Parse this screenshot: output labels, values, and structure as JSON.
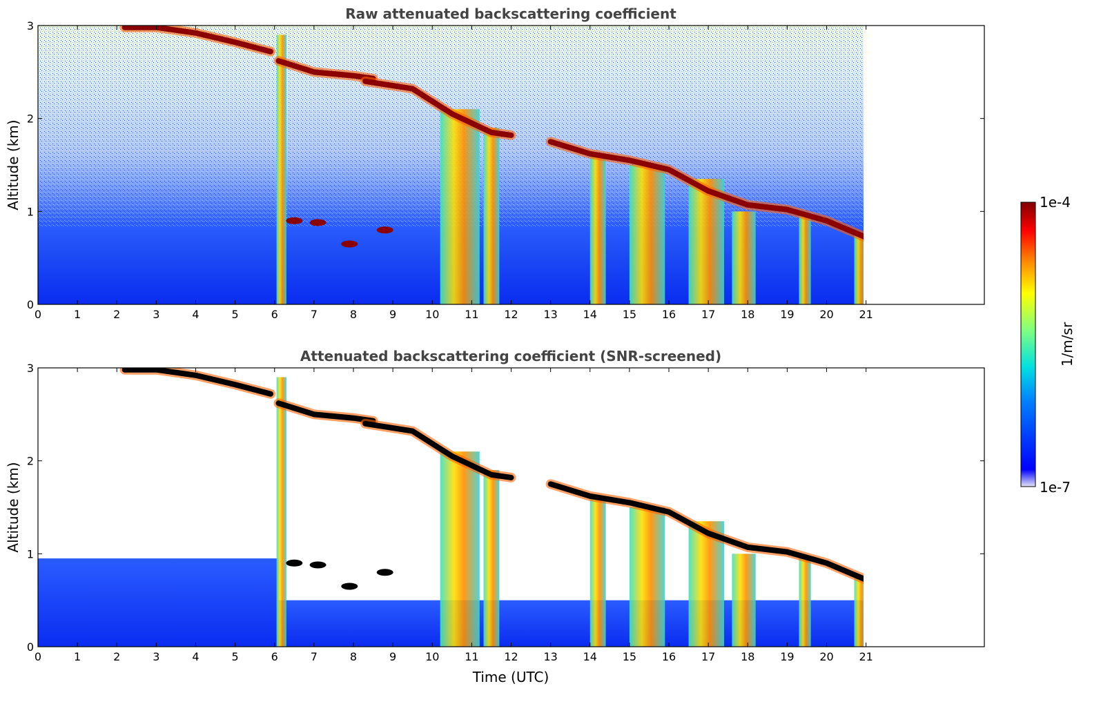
{
  "chart_data": [
    {
      "type": "heatmap",
      "title": "Raw attenuated backscattering coefficient",
      "xlabel": "",
      "ylabel": "Altitude (km)",
      "xlim": [
        0,
        24
      ],
      "ylim": [
        0,
        3
      ],
      "x_ticks": [
        0,
        1,
        2,
        3,
        4,
        5,
        6,
        7,
        8,
        9,
        10,
        11,
        12,
        13,
        14,
        15,
        16,
        17,
        18,
        19,
        20,
        21
      ],
      "y_ticks": [
        0,
        1,
        2,
        3
      ],
      "data_extent_x": [
        0,
        21
      ],
      "grid": false,
      "noise_above_signal": true,
      "cloud_layer": {
        "description_values": "cloud base altitude (km) vs time (UTC)",
        "segments": [
          {
            "time": [
              2.2,
              3.0,
              4.0,
              5.0,
              5.9
            ],
            "altitude": [
              2.98,
              2.98,
              2.92,
              2.82,
              2.72
            ]
          },
          {
            "time": [
              6.1,
              7.0,
              8.0,
              8.5
            ],
            "altitude": [
              2.62,
              2.5,
              2.46,
              2.43
            ]
          },
          {
            "time": [
              8.3,
              9.5,
              10.5,
              11.5,
              12.0
            ],
            "altitude": [
              2.4,
              2.32,
              2.05,
              1.85,
              1.82
            ]
          },
          {
            "time": [
              13.0,
              14.0,
              15.0,
              16.0,
              17.0,
              18.0,
              19.0,
              20.0,
              21.0
            ],
            "altitude": [
              1.75,
              1.62,
              1.55,
              1.45,
              1.22,
              1.07,
              1.02,
              0.9,
              0.72
            ]
          }
        ],
        "low_clouds": {
          "time": [
            6.5,
            7.1,
            7.9,
            8.8
          ],
          "altitude": [
            0.9,
            0.88,
            0.65,
            0.8
          ]
        }
      },
      "rain_shafts": [
        {
          "time": [
            6.05,
            6.3
          ],
          "top": 2.9
        },
        {
          "time": [
            10.2,
            11.2
          ],
          "top": 2.1
        },
        {
          "time": [
            11.3,
            11.7
          ],
          "top": 1.9
        },
        {
          "time": [
            14.0,
            14.4
          ],
          "top": 1.6
        },
        {
          "time": [
            15.0,
            15.9
          ],
          "top": 1.5
        },
        {
          "time": [
            16.5,
            17.4
          ],
          "top": 1.35
        },
        {
          "time": [
            17.6,
            18.2
          ],
          "top": 1.0
        },
        {
          "time": [
            19.3,
            19.6
          ],
          "top": 0.95
        },
        {
          "time": [
            20.7,
            21.0
          ],
          "top": 0.75
        }
      ]
    },
    {
      "type": "heatmap",
      "title": "Attenuated backscattering coefficient (SNR-screened)",
      "xlabel": "Time (UTC)",
      "ylabel": "Altitude (km)",
      "xlim": [
        0,
        24
      ],
      "ylim": [
        0,
        3
      ],
      "x_ticks": [
        0,
        1,
        2,
        3,
        4,
        5,
        6,
        7,
        8,
        9,
        10,
        11,
        12,
        13,
        14,
        15,
        16,
        17,
        18,
        19,
        20,
        21
      ],
      "y_ticks": [
        0,
        1,
        2,
        3
      ],
      "data_extent_x": [
        0,
        21
      ],
      "grid": false,
      "noise_above_signal": false,
      "saturated_color": "#000000"
    }
  ],
  "colorbar": {
    "label": "1/m/sr",
    "max_label": "1e-4",
    "min_label": "1e-7",
    "scale": "log",
    "range": [
      1e-07,
      0.0001
    ],
    "colormap": "jet",
    "colors": [
      "#e6e6f5",
      "#0000ff",
      "#0080ff",
      "#00e0e0",
      "#80ff80",
      "#ffff00",
      "#ff8000",
      "#ff0000",
      "#800000"
    ]
  }
}
